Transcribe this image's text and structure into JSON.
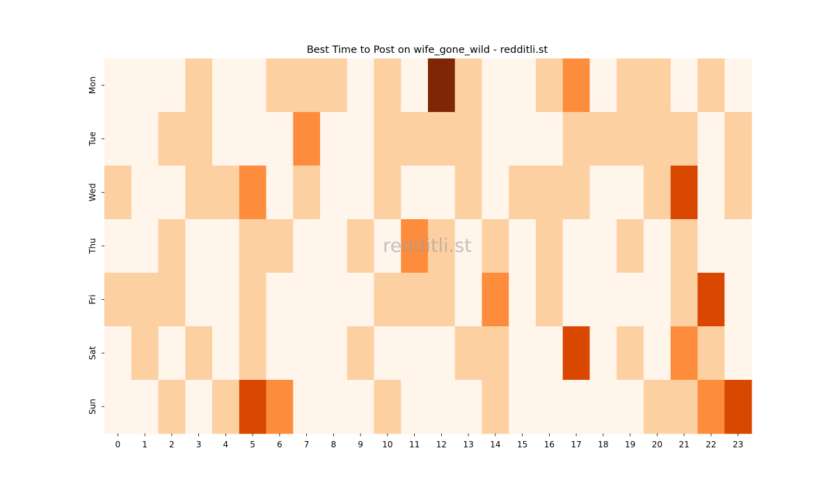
{
  "chart_data": {
    "type": "heatmap",
    "title": "Best Time to Post on wife_gone_wild - redditli.st",
    "watermark": "redditli.st",
    "xlabel": "",
    "ylabel": "",
    "x_categories": [
      "0",
      "1",
      "2",
      "3",
      "4",
      "5",
      "6",
      "7",
      "8",
      "9",
      "10",
      "11",
      "12",
      "13",
      "14",
      "15",
      "16",
      "17",
      "18",
      "19",
      "20",
      "21",
      "22",
      "23"
    ],
    "y_categories": [
      "Mon",
      "Tue",
      "Wed",
      "Thu",
      "Fri",
      "Sat",
      "Sun"
    ],
    "values": [
      [
        0,
        0,
        0,
        1,
        0,
        0,
        1,
        1,
        1,
        0,
        1,
        0,
        4,
        1,
        0,
        0,
        1,
        2,
        0,
        1,
        1,
        0,
        1,
        0
      ],
      [
        0,
        0,
        1,
        1,
        0,
        0,
        0,
        2,
        0,
        0,
        1,
        1,
        1,
        1,
        0,
        0,
        0,
        1,
        1,
        1,
        1,
        1,
        0,
        1
      ],
      [
        1,
        0,
        0,
        1,
        1,
        2,
        0,
        1,
        0,
        0,
        1,
        0,
        0,
        1,
        0,
        1,
        1,
        1,
        0,
        0,
        1,
        3,
        0,
        1
      ],
      [
        0,
        0,
        1,
        0,
        0,
        1,
        1,
        0,
        0,
        1,
        0,
        2,
        1,
        0,
        1,
        0,
        1,
        0,
        0,
        1,
        0,
        1,
        0,
        0
      ],
      [
        1,
        1,
        1,
        0,
        0,
        1,
        0,
        0,
        0,
        0,
        1,
        1,
        1,
        0,
        2,
        0,
        1,
        0,
        0,
        0,
        0,
        1,
        3,
        0
      ],
      [
        0,
        1,
        0,
        1,
        0,
        1,
        0,
        0,
        0,
        1,
        0,
        0,
        0,
        1,
        1,
        0,
        0,
        3,
        0,
        1,
        0,
        2,
        1,
        0
      ],
      [
        0,
        0,
        1,
        0,
        1,
        3,
        2,
        0,
        0,
        0,
        1,
        0,
        0,
        0,
        1,
        0,
        0,
        0,
        0,
        0,
        1,
        1,
        2,
        3
      ]
    ],
    "value_range": [
      0,
      4
    ],
    "colormap": [
      "#fff5eb",
      "#fdd0a2",
      "#fd8d3c",
      "#d94801",
      "#7f2704"
    ],
    "grid": false,
    "legend": "none"
  }
}
